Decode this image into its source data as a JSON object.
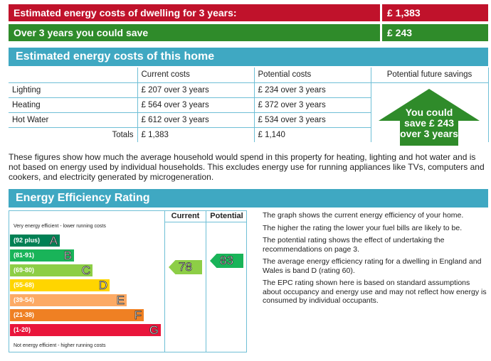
{
  "summary": {
    "estimated_label": "Estimated energy costs of dwelling for 3 years:",
    "estimated_value": "£ 1,383",
    "save_label": "Over 3 years you could save",
    "save_value": "£ 243"
  },
  "costs_section": {
    "title": "Estimated energy costs of this home",
    "headers": [
      "Current costs",
      "Potential costs",
      "Potential future savings"
    ],
    "rows": [
      {
        "label": "Lighting",
        "current": "£ 207 over 3 years",
        "potential": "£ 234 over 3 years"
      },
      {
        "label": "Heating",
        "current": "£ 564 over 3 years",
        "potential": "£ 372 over 3 years"
      },
      {
        "label": "Hot Water",
        "current": "£ 612 over 3 years",
        "potential": "£ 534 over 3 years"
      }
    ],
    "totals_label": "Totals",
    "totals_current": "£ 1,383",
    "totals_potential": "£ 1,140",
    "savings_arrow": [
      "You could",
      "save £ 243",
      "over 3 years"
    ],
    "note": "These figures show how much the average household would spend in this property for heating, lighting and hot water and is not based on energy used by individual households. This excludes energy use for running appliances like TVs, computers and cookers, and electricity generated by microgeneration."
  },
  "efficiency_section": {
    "title": "Energy Efficiency Rating",
    "col_current": "Current",
    "col_potential": "Potential",
    "top_caption": "Very energy efficient - lower running costs",
    "bottom_caption": "Not energy efficient - higher running costs",
    "bands": [
      {
        "range": "(92 plus)",
        "letter": "A",
        "color": "#008054"
      },
      {
        "range": "(81-91)",
        "letter": "B",
        "color": "#19b459"
      },
      {
        "range": "(69-80)",
        "letter": "C",
        "color": "#8dce46"
      },
      {
        "range": "(55-68)",
        "letter": "D",
        "color": "#ffd500"
      },
      {
        "range": "(39-54)",
        "letter": "E",
        "color": "#fcaa65"
      },
      {
        "range": "(21-38)",
        "letter": "F",
        "color": "#ef8023"
      },
      {
        "range": "(1-20)",
        "letter": "G",
        "color": "#e9153b"
      }
    ],
    "current_rating": "78",
    "current_color": "#8dce46",
    "potential_rating": "83",
    "potential_color": "#19b459",
    "explanations": [
      "The graph shows the current energy efficiency of your home.",
      "The higher the rating the lower your fuel bills are likely to be.",
      "The potential rating shows the effect of undertaking the recommendations on page 3.",
      "The average energy efficiency rating for a dwelling in England and Wales is band D (rating 60).",
      "The EPC rating shown here is based on standard assumptions about occupancy and energy use and may not reflect how energy is consumed by individual occupants."
    ]
  }
}
